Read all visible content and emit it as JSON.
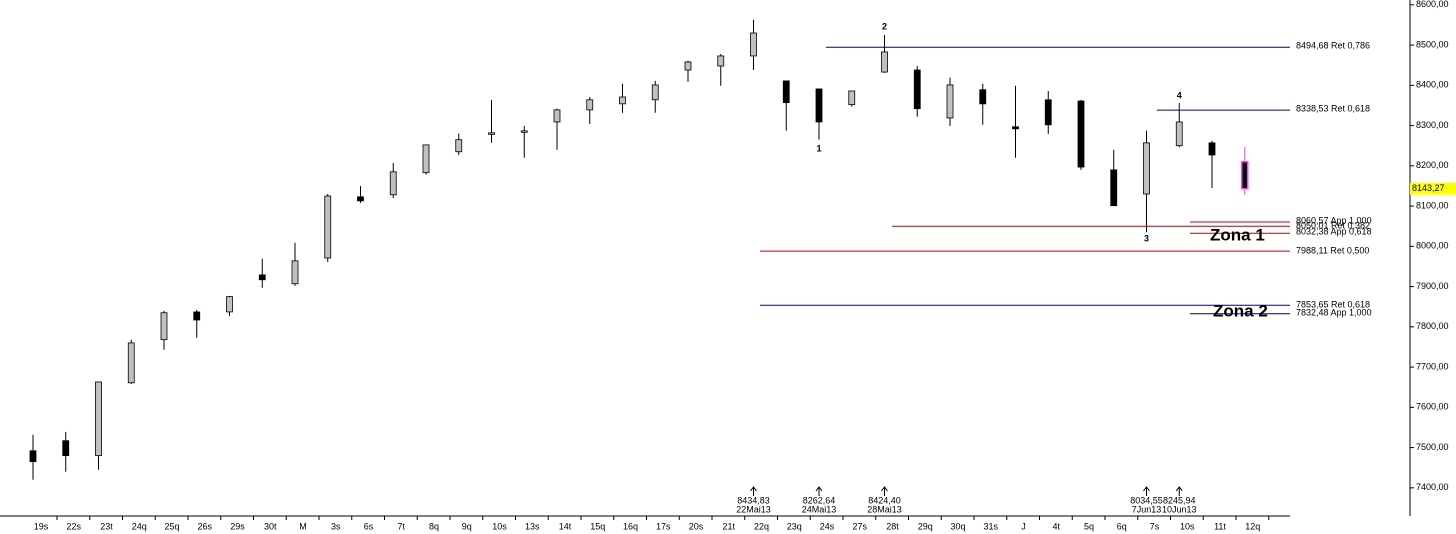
{
  "chart_data": {
    "type": "candlestick",
    "categories": [
      "19s",
      "22s",
      "23t",
      "24q",
      "25q",
      "26s",
      "29s",
      "30t",
      "M",
      "3s",
      "6s",
      "7t",
      "8q",
      "9q",
      "10s",
      "13s",
      "14t",
      "15q",
      "16q",
      "17s",
      "20s",
      "21t",
      "22q",
      "23q",
      "24s",
      "27s",
      "28t",
      "29q",
      "30q",
      "31s",
      "J",
      "4t",
      "5q",
      "6q",
      "7s",
      "10s",
      "11t",
      "12q"
    ],
    "open": [
      7492,
      7517,
      7480,
      7661,
      7768,
      7837,
      7837,
      7929,
      7907,
      7971,
      8123,
      8128,
      8183,
      8235,
      8280,
      8285,
      8309,
      8339,
      8354,
      8364,
      8438,
      8448,
      8473,
      8411,
      8391,
      8352,
      8433,
      8438,
      8319,
      8389,
      8297,
      8364,
      8361,
      8190,
      8130,
      8250,
      8257,
      8210
    ],
    "high": [
      7532,
      7539,
      7663,
      7768,
      7840,
      7842,
      7877,
      7969,
      8009,
      8130,
      8150,
      8207,
      8252,
      8280,
      8364,
      8299,
      8342,
      8371,
      8404,
      8411,
      8461,
      8478,
      8563,
      8411,
      8391,
      8386,
      8525,
      8448,
      8419,
      8404,
      8399,
      8386,
      8364,
      8240,
      8287,
      8356,
      8262,
      8247
    ],
    "low": [
      7420,
      7440,
      7445,
      7658,
      7743,
      7773,
      7827,
      7897,
      7902,
      7961,
      8108,
      8120,
      8178,
      8227,
      8257,
      8220,
      8240,
      8304,
      8332,
      8332,
      8409,
      8399,
      8438,
      8287,
      8265,
      8347,
      8431,
      8322,
      8299,
      8302,
      8220,
      8279,
      8190,
      8101,
      8035,
      8246,
      8145,
      8128
    ],
    "close": [
      7465,
      7480,
      7663,
      7760,
      7835,
      7817,
      7875,
      7917,
      7964,
      8125,
      8113,
      8185,
      8252,
      8265,
      8282,
      8287,
      8339,
      8364,
      8371,
      8401,
      8458,
      8473,
      8530,
      8357,
      8309,
      8386,
      8483,
      8342,
      8401,
      8354,
      8292,
      8302,
      8197,
      8101,
      8257,
      8309,
      8227,
      8143.27
    ],
    "colors": {
      "up": "#c0c0c0",
      "down": "#000000",
      "last": "#ff40ff"
    },
    "ylim": [
      7330,
      8612
    ],
    "yticks": [
      {
        "value": 7400,
        "label": "7400,00"
      },
      {
        "value": 7500,
        "label": "7500,00"
      },
      {
        "value": 7600,
        "label": "7600,00"
      },
      {
        "value": 7700,
        "label": "7700,00"
      },
      {
        "value": 7800,
        "label": "7800,00"
      },
      {
        "value": 7900,
        "label": "7900,00"
      },
      {
        "value": 8000,
        "label": "8000,00"
      },
      {
        "value": 8100,
        "label": "8100,00"
      },
      {
        "value": 8200,
        "label": "8200,00"
      },
      {
        "value": 8300,
        "label": "8300,00"
      },
      {
        "value": 8400,
        "label": "8400,00"
      },
      {
        "value": 8500,
        "label": "8500,00"
      },
      {
        "value": 8600,
        "label": "8600,00"
      }
    ],
    "last_price": {
      "value": 8143.27,
      "label": "8143,27"
    },
    "levels": [
      {
        "value": 8494.68,
        "label": "8494,68 Ret 0,786",
        "color": "#000080"
      },
      {
        "value": 8338.53,
        "label": "8338,53 Ret 0,618",
        "color": "#000080"
      },
      {
        "value": 8060.57,
        "label": "8060,57 App 1,000",
        "color": "#c00000"
      },
      {
        "value": 8050.01,
        "label": "8050,01 Ret 0,382",
        "color": "#c00000"
      },
      {
        "value": 8032.38,
        "label": "8032,38 App 0,618",
        "color": "#c00000"
      },
      {
        "value": 7988.11,
        "label": "7988,11 Ret 0,500",
        "color": "#c00000"
      },
      {
        "value": 7853.65,
        "label": "7853,65 Ret 0,618",
        "color": "#000080"
      },
      {
        "value": 7832.48,
        "label": "7832,48 App 1,000",
        "color": "#000080"
      }
    ],
    "wave_labels": [
      "1",
      "2",
      "3",
      "4"
    ],
    "zones": [
      "Zona 1",
      "Zona 2"
    ],
    "markers": [
      {
        "value": 8434.83,
        "label": "8434,83",
        "date": "22Mai13"
      },
      {
        "value": 8262.64,
        "label": "8262,64",
        "date": "24Mai13"
      },
      {
        "value": 8424.4,
        "label": "8424,40",
        "date": "28Mai13"
      },
      {
        "value": 8034.55,
        "label": "8034,55",
        "date": "7Jun13"
      },
      {
        "value": 8245.94,
        "label": "8245,94",
        "date": "10Jun13"
      }
    ]
  }
}
